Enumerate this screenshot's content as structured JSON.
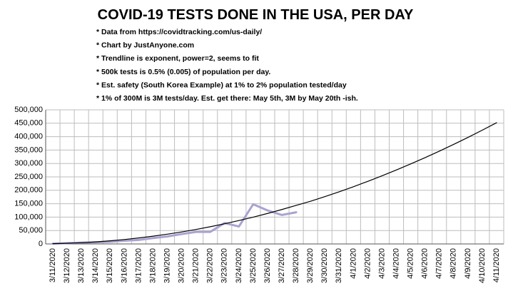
{
  "chart_data": {
    "type": "line",
    "title": "COVID-19  TESTS DONE IN THE USA, PER DAY",
    "notes": [
      "* Data from https://covidtracking.com/us-daily/",
      "* Chart by JustAnyone.com",
      "* Trendline is exponent, power=2, seems to fit",
      "* 500k tests is 0.5% (0.005) of population per day.",
      "* Est. safety (South Korea Example) at 1% to 2% population tested/day",
      "* 1% of 300M is 3M tests/day. Est. get there: May 5th, 3M by May 20th -ish."
    ],
    "categories": [
      "3/11/2020",
      "3/12/2020",
      "3/13/2020",
      "3/14/2020",
      "3/15/2020",
      "3/16/2020",
      "3/17/2020",
      "3/18/2020",
      "3/19/2020",
      "3/20/2020",
      "3/21/2020",
      "3/22/2020",
      "3/23/2020",
      "3/24/2020",
      "3/25/2020",
      "3/26/2020",
      "3/27/2020",
      "3/28/2020",
      "3/29/2020",
      "3/30/2020",
      "3/31/2020",
      "4/1/2020",
      "4/2/2020",
      "4/3/2020",
      "4/4/2020",
      "4/5/2020",
      "4/6/2020",
      "4/7/2020",
      "4/8/2020",
      "4/9/2020",
      "4/10/2020",
      "4/11/2020"
    ],
    "series": [
      {
        "color": "#aaa3d0",
        "width": 3,
        "values": [
          1000,
          3000,
          5000,
          6000,
          8000,
          12000,
          15000,
          22000,
          28000,
          37000,
          45000,
          45000,
          78000,
          65000,
          148000,
          125000,
          108000,
          118000,
          null,
          null,
          null,
          null,
          null,
          null,
          null,
          null,
          null,
          null,
          null,
          null,
          null,
          null
        ]
      },
      {
        "color": "#000000",
        "width": 1.2,
        "values": [
          1000,
          2300,
          4500,
          7600,
          11600,
          16500,
          22200,
          28900,
          36400,
          44800,
          54100,
          64200,
          75300,
          87200,
          100000,
          113700,
          128300,
          143700,
          159100,
          176300,
          194400,
          213400,
          233300,
          254100,
          275700,
          298300,
          321700,
          346000,
          371200,
          397200,
          424200,
          452000
        ]
      }
    ],
    "ylim": [
      0,
      500000
    ],
    "yticks": [
      0,
      {
        "value": 50000,
        "label": "50,000"
      },
      {
        "value": 100000,
        "label": "100,000"
      },
      {
        "value": 150000,
        "label": "150,000"
      },
      {
        "value": 200000,
        "label": "200,000"
      },
      {
        "value": 250000,
        "label": "250,000"
      },
      {
        "value": 300000,
        "label": "300,000"
      },
      {
        "value": 350000,
        "label": "350,000"
      },
      {
        "value": 400000,
        "label": "400,000"
      },
      {
        "value": 450000,
        "label": "450,000"
      },
      {
        "value": 500000,
        "label": "500,000"
      }
    ],
    "grid": true
  }
}
